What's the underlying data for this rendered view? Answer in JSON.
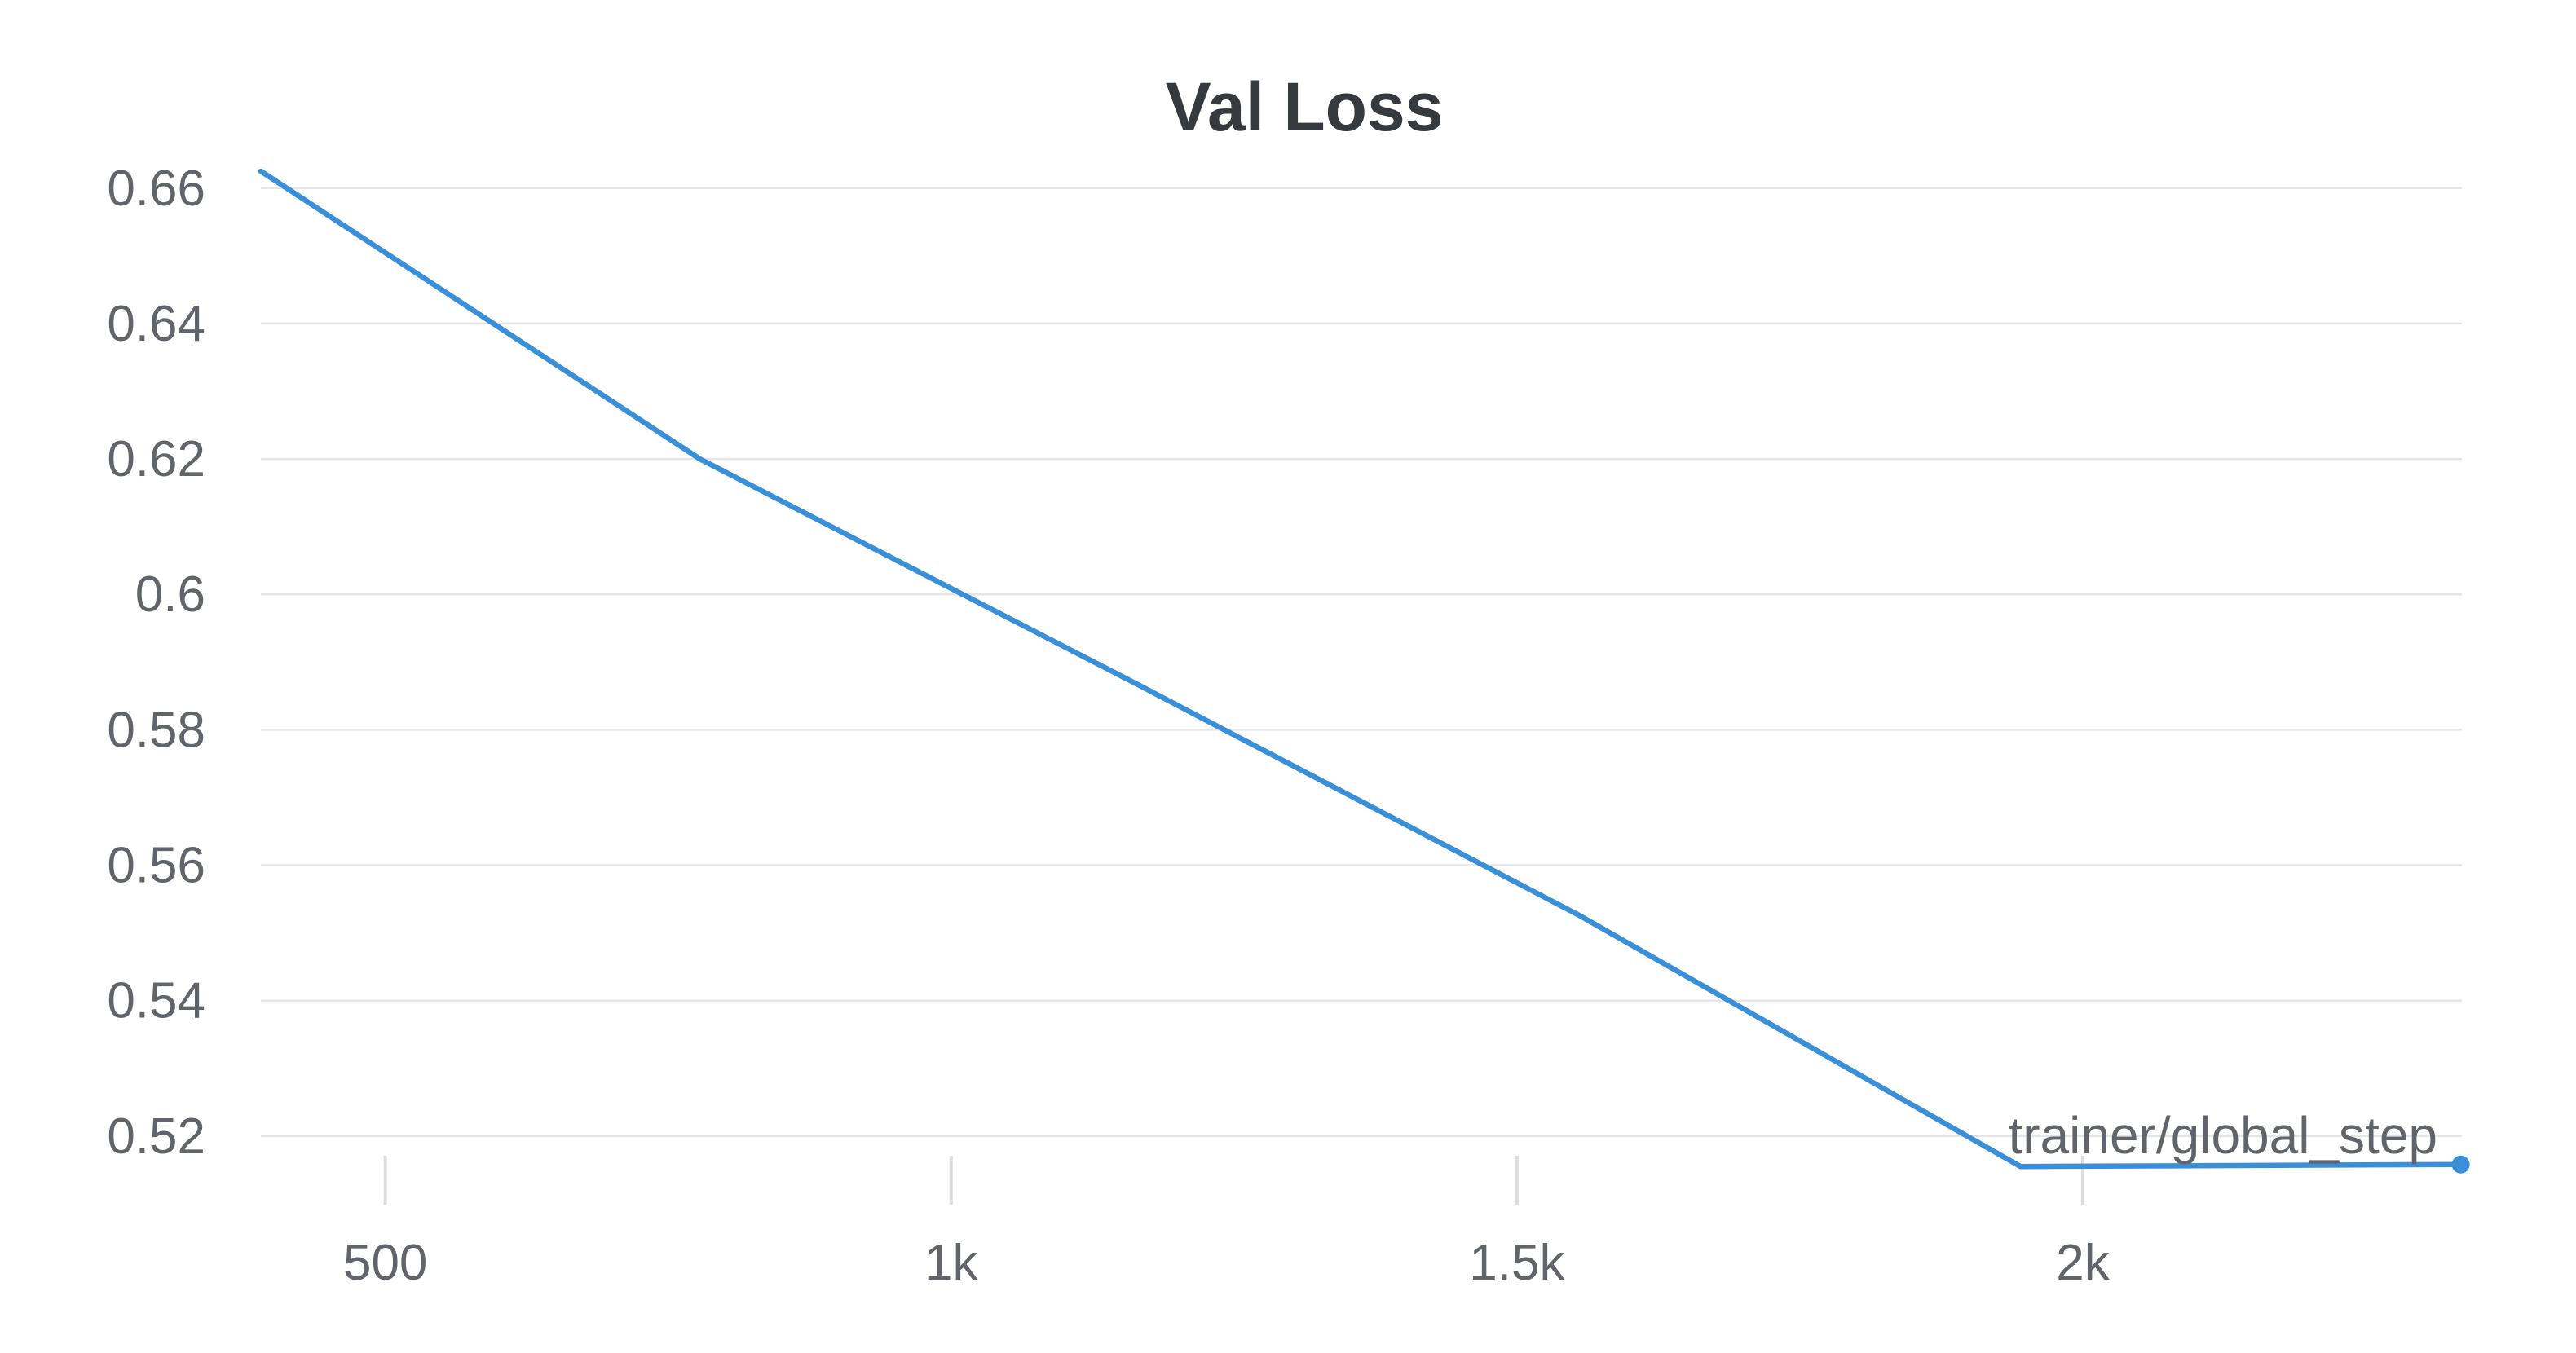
{
  "chart_data": {
    "type": "line",
    "title": "Val Loss",
    "xlabel": "trainer/global_step",
    "ylabel": "",
    "xlim": [
      390,
      2335
    ],
    "ylim": [
      0.513,
      0.6625
    ],
    "yticks": [
      0.52,
      0.54,
      0.56,
      0.58,
      0.6,
      0.62,
      0.64,
      0.66
    ],
    "ytick_labels": [
      "0.52",
      "0.54",
      "0.56",
      "0.58",
      "0.6",
      "0.62",
      "0.64",
      "0.66"
    ],
    "xticks": [
      500,
      1000,
      1500,
      2000
    ],
    "xtick_labels": [
      "500",
      "1k",
      "1.5k",
      "2k"
    ],
    "grid": true,
    "series": [
      {
        "color": "#3a8fd9",
        "x": [
          390,
          778,
          1167,
          1556,
          1945,
          2334
        ],
        "y": [
          0.6625,
          0.62,
          0.5865,
          0.5525,
          0.5155,
          0.5158
        ]
      }
    ]
  }
}
